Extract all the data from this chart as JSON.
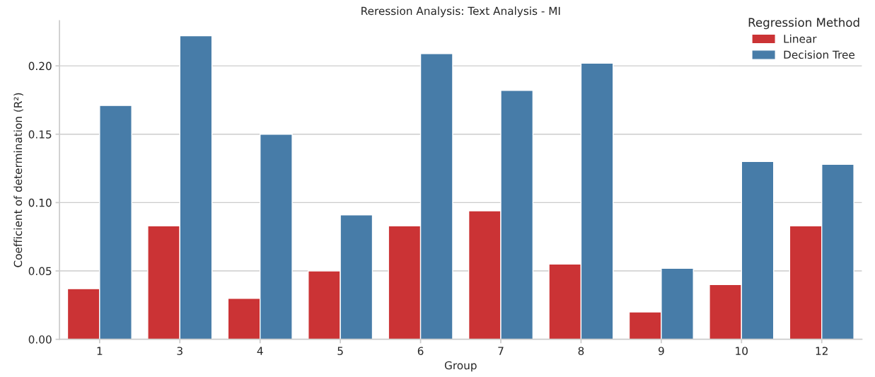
{
  "chart_data": {
    "type": "bar",
    "title": "Reression Analysis: Text Analysis - MI",
    "xlabel": "Group",
    "ylabel": "Coefficient of determination (R²)",
    "legend_title": "Regression Method",
    "categories": [
      "1",
      "3",
      "4",
      "5",
      "6",
      "7",
      "8",
      "9",
      "10",
      "12"
    ],
    "series": [
      {
        "name": "Linear",
        "color": "#cb3335",
        "values": [
          0.037,
          0.083,
          0.03,
          0.05,
          0.083,
          0.094,
          0.055,
          0.02,
          0.04,
          0.083
        ]
      },
      {
        "name": "Decision Tree",
        "color": "#477ca8",
        "values": [
          0.171,
          0.222,
          0.15,
          0.091,
          0.209,
          0.182,
          0.202,
          0.052,
          0.13,
          0.128
        ]
      }
    ],
    "ylim": [
      0,
      0.233
    ],
    "yticks": [
      {
        "value": 0,
        "label": "0.00"
      },
      0.05,
      {
        "value": 0.1,
        "label": "0.10"
      },
      0.15,
      {
        "value": 0.2,
        "label": "0.20"
      }
    ],
    "grid": "y",
    "legend": "top right"
  }
}
